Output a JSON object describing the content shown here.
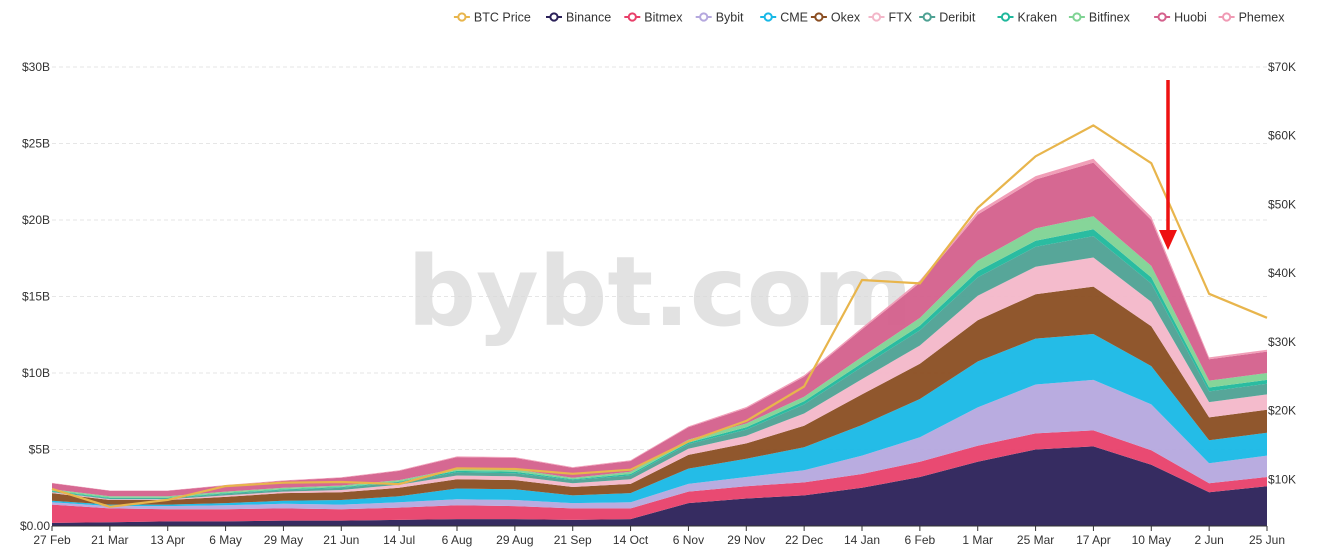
{
  "watermark": "bybt.com",
  "colors": {
    "btc_price": "#e8b54c",
    "arrow": "#ee1111",
    "grid": "#e6e6e6",
    "axis": "#333333"
  },
  "chart_data": {
    "type": "area",
    "stacked": true,
    "x_labels": [
      "27 Feb",
      "21 Mar",
      "13 Apr",
      "6 May",
      "29 May",
      "21 Jun",
      "14 Jul",
      "6 Aug",
      "29 Aug",
      "21 Sep",
      "14 Oct",
      "6 Nov",
      "29 Nov",
      "22 Dec",
      "14 Jan",
      "6 Feb",
      "1 Mar",
      "25 Mar",
      "17 Apr",
      "10 May",
      "2 Jun",
      "25 Jun"
    ],
    "y_left": {
      "ticks": [
        "$0.00",
        "$5B",
        "$10B",
        "$15B",
        "$20B",
        "$25B",
        "$30B"
      ],
      "min": 0,
      "max": 30,
      "unit": "B USD"
    },
    "y_right": {
      "ticks": [
        "$10K",
        "$20K",
        "$30K",
        "$40K",
        "$50K",
        "$60K",
        "$70K"
      ],
      "min": 3.2,
      "max": 70,
      "unit": "K USD"
    },
    "legend_position": "top-right",
    "grid": true,
    "series": [
      {
        "name": "Binance",
        "color": "#2b2159",
        "values": [
          0.2,
          0.25,
          0.3,
          0.3,
          0.35,
          0.35,
          0.4,
          0.45,
          0.45,
          0.4,
          0.45,
          1.5,
          1.8,
          2.0,
          2.5,
          3.2,
          4.2,
          5.0,
          5.2,
          4.0,
          2.2,
          2.6
        ]
      },
      {
        "name": "Bitmex",
        "color": "#e8406a",
        "values": [
          1.2,
          0.9,
          0.8,
          0.8,
          0.8,
          0.75,
          0.8,
          0.9,
          0.85,
          0.75,
          0.7,
          0.75,
          0.8,
          0.85,
          0.9,
          1.0,
          1.05,
          1.05,
          1.05,
          0.95,
          0.6,
          0.6
        ]
      },
      {
        "name": "Bybit",
        "color": "#b5a8de",
        "values": [
          0.15,
          0.15,
          0.2,
          0.25,
          0.3,
          0.3,
          0.35,
          0.4,
          0.4,
          0.35,
          0.4,
          0.5,
          0.6,
          0.8,
          1.2,
          1.6,
          2.5,
          3.2,
          3.3,
          3.0,
          1.3,
          1.4
        ]
      },
      {
        "name": "CME",
        "color": "#18b8e6",
        "values": [
          0.1,
          0.1,
          0.1,
          0.15,
          0.2,
          0.3,
          0.4,
          0.7,
          0.7,
          0.5,
          0.6,
          1.0,
          1.2,
          1.5,
          2.0,
          2.5,
          3.0,
          3.0,
          3.0,
          2.5,
          1.5,
          1.5
        ]
      },
      {
        "name": "Okex",
        "color": "#8a4e22",
        "values": [
          0.5,
          0.3,
          0.3,
          0.4,
          0.5,
          0.5,
          0.55,
          0.6,
          0.6,
          0.55,
          0.6,
          0.9,
          1.0,
          1.4,
          2.0,
          2.3,
          2.7,
          2.9,
          3.1,
          2.6,
          1.5,
          1.5
        ]
      },
      {
        "name": "FTX",
        "color": "#f3b7c9",
        "values": [
          0.05,
          0.05,
          0.05,
          0.1,
          0.1,
          0.15,
          0.2,
          0.25,
          0.25,
          0.25,
          0.3,
          0.4,
          0.5,
          0.8,
          1.0,
          1.2,
          1.6,
          1.8,
          1.9,
          1.6,
          1.0,
          1.0
        ]
      },
      {
        "name": "Deribit",
        "color": "#4ea193",
        "values": [
          0.05,
          0.05,
          0.05,
          0.1,
          0.1,
          0.15,
          0.15,
          0.2,
          0.2,
          0.2,
          0.25,
          0.3,
          0.4,
          0.6,
          0.8,
          1.0,
          1.2,
          1.3,
          1.4,
          1.2,
          0.7,
          0.7
        ]
      },
      {
        "name": "Kraken",
        "color": "#1fb89c",
        "values": [
          0.05,
          0.05,
          0.05,
          0.05,
          0.05,
          0.05,
          0.05,
          0.1,
          0.1,
          0.05,
          0.1,
          0.1,
          0.15,
          0.2,
          0.25,
          0.3,
          0.4,
          0.4,
          0.45,
          0.4,
          0.25,
          0.25
        ]
      },
      {
        "name": "Bitfinex",
        "color": "#7fd393",
        "values": [
          0.1,
          0.1,
          0.1,
          0.1,
          0.1,
          0.1,
          0.1,
          0.15,
          0.15,
          0.1,
          0.15,
          0.2,
          0.25,
          0.3,
          0.4,
          0.5,
          0.7,
          0.8,
          0.85,
          0.75,
          0.45,
          0.45
        ]
      },
      {
        "name": "Huobi",
        "color": "#d4608c",
        "values": [
          0.4,
          0.35,
          0.35,
          0.4,
          0.45,
          0.5,
          0.6,
          0.75,
          0.75,
          0.65,
          0.7,
          0.8,
          1.0,
          1.3,
          1.8,
          2.3,
          3.0,
          3.2,
          3.5,
          3.0,
          1.4,
          1.4
        ]
      },
      {
        "name": "Phemex",
        "color": "#f09ab4",
        "values": [
          0.02,
          0.02,
          0.02,
          0.03,
          0.03,
          0.03,
          0.04,
          0.05,
          0.05,
          0.05,
          0.05,
          0.06,
          0.08,
          0.1,
          0.12,
          0.15,
          0.2,
          0.22,
          0.25,
          0.2,
          0.12,
          0.12
        ]
      }
    ],
    "price_series": {
      "name": "BTC Price",
      "color": "#e8b54c",
      "axis": "right",
      "values": [
        8.6,
        6.0,
        7.0,
        9.0,
        9.5,
        9.6,
        9.3,
        11.6,
        11.5,
        10.8,
        11.4,
        15.5,
        18.5,
        23.5,
        39.0,
        38.5,
        49.5,
        57.0,
        61.5,
        56.0,
        37.0,
        33.5
      ]
    }
  }
}
